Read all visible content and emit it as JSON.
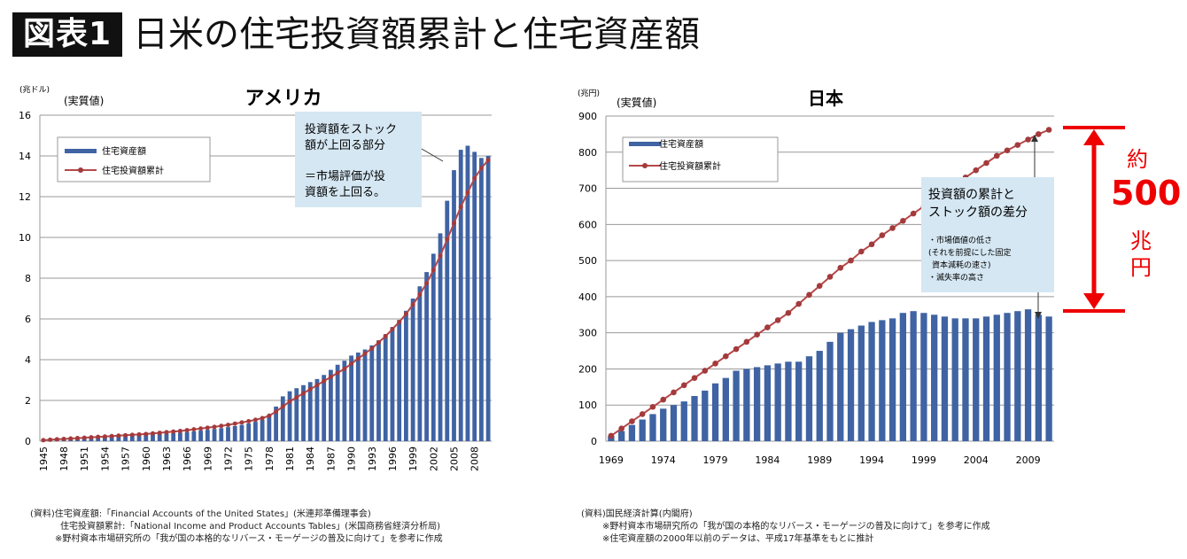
{
  "header": {
    "badge": "図表1",
    "title": "日米の住宅投資額累計と住宅資産額"
  },
  "us_chart": {
    "title": "アメリカ",
    "unit": "(兆ドル)",
    "real_label": "(実質値)",
    "legend": [
      "住宅資産額",
      "住宅投資額累計"
    ],
    "callout_lines": [
      "投資額をストック",
      "額が上回る部分",
      "",
      "＝市場評価が投",
      "資額を上回る。"
    ],
    "sources": [
      "(資料)住宅資産額:「Financial Accounts of the United States」(米連邦準備理事会)",
      "住宅投資額累計:「National Income and Product Accounts Tables」(米国商務省経済分析局)",
      "※野村資本市場研究所の「我が国の本格的なリバース・モーゲージの普及に向けて」を参考に作成"
    ]
  },
  "jp_chart": {
    "title": "日本",
    "unit": "(兆円)",
    "real_label": "(実質値)",
    "legend": [
      "住宅資産額",
      "住宅投資額累計"
    ],
    "callout_lines": [
      "投資額の累計と",
      "ストック額の差分",
      "",
      "・市場価値の低さ",
      "(それを前提にした固定",
      "資本減耗の速さ)",
      "・滅失率の高さ"
    ],
    "sources": [
      "(資料)国民経済計算(内閣府)",
      "※野村資本市場研究所の「我が国の本格的なリバース・モーゲージの普及に向けて」を参考に作成",
      "※住宅資産額の2000年以前のデータは、平成17年基準をもとに推計"
    ]
  },
  "diff_annotation": {
    "top": "約",
    "value": "500",
    "unit1": "兆",
    "unit2": "円",
    "color": "#ee0000"
  },
  "colors": {
    "bar": "#3f63a3",
    "line": "#b5484a",
    "marker": "#a33a3c"
  },
  "chart_data": [
    {
      "type": "bar",
      "title": "アメリカ",
      "ylabel": "(兆ドル)",
      "ylim": [
        0,
        16
      ],
      "yticks": [
        0,
        2,
        4,
        6,
        8,
        10,
        12,
        14,
        16
      ],
      "xtick_labels": [
        "1945",
        "1948",
        "1951",
        "1954",
        "1957",
        "1960",
        "1963",
        "1966",
        "1969",
        "1972",
        "1975",
        "1978",
        "1981",
        "1984",
        "1987",
        "1990",
        "1993",
        "1996",
        "1999",
        "2002",
        "2005",
        "2008"
      ],
      "x": [
        1945,
        1946,
        1947,
        1948,
        1949,
        1950,
        1951,
        1952,
        1953,
        1954,
        1955,
        1956,
        1957,
        1958,
        1959,
        1960,
        1961,
        1962,
        1963,
        1964,
        1965,
        1966,
        1967,
        1968,
        1969,
        1970,
        1971,
        1972,
        1973,
        1974,
        1975,
        1976,
        1977,
        1978,
        1979,
        1980,
        1981,
        1982,
        1983,
        1984,
        1985,
        1986,
        1987,
        1988,
        1989,
        1990,
        1991,
        1992,
        1993,
        1994,
        1995,
        1996,
        1997,
        1998,
        1999,
        2000,
        2001,
        2002,
        2003,
        2004,
        2005,
        2006,
        2007,
        2008,
        2009,
        2010
      ],
      "series": [
        {
          "name": "住宅資産額",
          "kind": "bar",
          "values": [
            0.08,
            0.1,
            0.11,
            0.13,
            0.14,
            0.16,
            0.18,
            0.19,
            0.2,
            0.21,
            0.23,
            0.25,
            0.26,
            0.28,
            0.3,
            0.31,
            0.33,
            0.35,
            0.37,
            0.39,
            0.42,
            0.45,
            0.48,
            0.52,
            0.56,
            0.6,
            0.64,
            0.69,
            0.74,
            0.8,
            0.87,
            0.95,
            1.05,
            1.3,
            1.7,
            2.2,
            2.45,
            2.6,
            2.75,
            2.9,
            3.05,
            3.25,
            3.5,
            3.75,
            3.95,
            4.2,
            4.35,
            4.5,
            4.7,
            4.95,
            5.25,
            5.6,
            5.95,
            6.4,
            7.0,
            7.6,
            8.3,
            9.2,
            10.2,
            11.8,
            13.3,
            14.3,
            14.5,
            14.2,
            13.9,
            14.0
          ]
        },
        {
          "name": "住宅投資額累計",
          "kind": "line",
          "values": [
            0.05,
            0.07,
            0.09,
            0.11,
            0.13,
            0.15,
            0.17,
            0.19,
            0.21,
            0.23,
            0.25,
            0.27,
            0.29,
            0.31,
            0.33,
            0.35,
            0.38,
            0.41,
            0.44,
            0.47,
            0.5,
            0.54,
            0.58,
            0.62,
            0.66,
            0.7,
            0.75,
            0.8,
            0.86,
            0.92,
            0.98,
            1.05,
            1.13,
            1.25,
            1.45,
            1.7,
            1.95,
            2.15,
            2.35,
            2.55,
            2.75,
            2.95,
            3.15,
            3.35,
            3.55,
            3.8,
            4.05,
            4.3,
            4.55,
            4.85,
            5.15,
            5.5,
            5.85,
            6.25,
            6.7,
            7.2,
            7.75,
            8.4,
            9.1,
            9.9,
            10.7,
            11.5,
            12.2,
            12.9,
            13.4,
            13.8
          ]
        }
      ]
    },
    {
      "type": "bar",
      "title": "日本",
      "ylabel": "(兆円)",
      "ylim": [
        0,
        900
      ],
      "yticks": [
        0,
        100,
        200,
        300,
        400,
        500,
        600,
        700,
        800,
        900
      ],
      "xtick_labels": [
        "1969",
        "1974",
        "1979",
        "1984",
        "1989",
        "1994",
        "1999",
        "2004",
        "2009"
      ],
      "x": [
        1969,
        1970,
        1971,
        1972,
        1973,
        1974,
        1975,
        1976,
        1977,
        1978,
        1979,
        1980,
        1981,
        1982,
        1983,
        1984,
        1985,
        1986,
        1987,
        1988,
        1989,
        1990,
        1991,
        1992,
        1993,
        1994,
        1995,
        1996,
        1997,
        1998,
        1999,
        2000,
        2001,
        2002,
        2003,
        2004,
        2005,
        2006,
        2007,
        2008,
        2009,
        2010,
        2011
      ],
      "series": [
        {
          "name": "住宅資産額",
          "kind": "bar",
          "values": [
            15,
            28,
            45,
            60,
            75,
            90,
            100,
            110,
            125,
            140,
            160,
            175,
            195,
            200,
            205,
            210,
            215,
            220,
            220,
            235,
            250,
            275,
            300,
            310,
            320,
            330,
            335,
            340,
            355,
            360,
            355,
            350,
            345,
            340,
            340,
            340,
            345,
            350,
            355,
            360,
            365,
            350,
            345
          ]
        },
        {
          "name": "住宅投資額累計",
          "kind": "line",
          "values": [
            15,
            35,
            55,
            75,
            95,
            115,
            135,
            155,
            175,
            195,
            215,
            235,
            255,
            275,
            295,
            315,
            335,
            355,
            380,
            405,
            430,
            455,
            480,
            500,
            525,
            545,
            570,
            590,
            610,
            630,
            650,
            670,
            690,
            710,
            730,
            750,
            770,
            790,
            805,
            820,
            835,
            850,
            862
          ]
        }
      ]
    }
  ]
}
